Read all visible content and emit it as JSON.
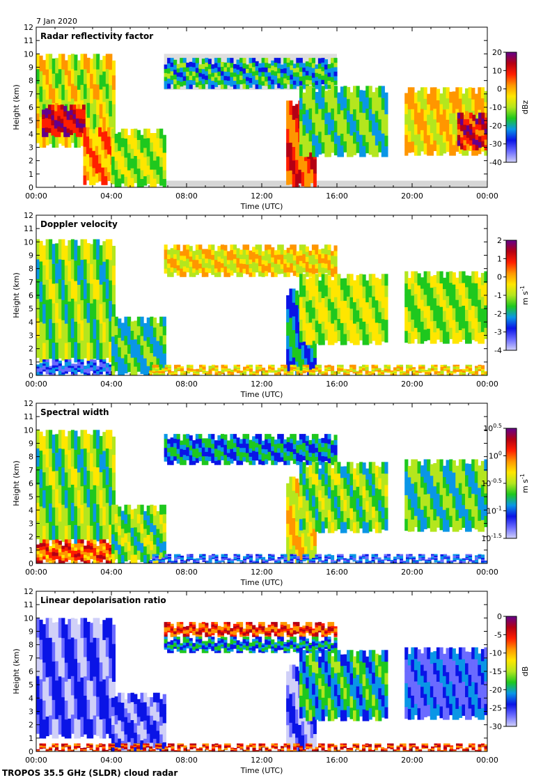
{
  "header": {
    "date_label": "7 Jan 2020"
  },
  "footer": {
    "instrument_label": "TROPOS 35.5 GHz (SLDR) cloud radar"
  },
  "colors": {
    "jet_scale": [
      "#d0d0f8",
      "#6b6bff",
      "#0a14e6",
      "#0a96e6",
      "#1ec81e",
      "#b4e61e",
      "#ffe600",
      "#ff9600",
      "#ff1e00",
      "#b40014",
      "#64008c"
    ],
    "gray_background": "#d6d6d6"
  },
  "chart_data": [
    {
      "type": "heatmap",
      "title": "Radar reflectivity factor",
      "xlabel": "Time (UTC)",
      "ylabel": "Height (km)",
      "xlim": [
        0,
        24
      ],
      "ylim": [
        0,
        12
      ],
      "x_ticks": [
        "00:00",
        "04:00",
        "08:00",
        "12:00",
        "16:00",
        "20:00",
        "00:00"
      ],
      "y_ticks": [
        "0",
        "1",
        "2",
        "3",
        "4",
        "5",
        "6",
        "7",
        "8",
        "9",
        "10",
        "11",
        "12"
      ],
      "colorbar": {
        "unit": "dBz",
        "range": [
          -40,
          20
        ],
        "ticks": [
          "-40",
          "-30",
          "-20",
          "-10",
          "0",
          "10",
          "20"
        ]
      },
      "field": "reflectivity",
      "cloud_regions": [
        {
          "t": [
            0.0,
            4.2
          ],
          "h": [
            3.0,
            10.0
          ],
          "v": 0.55
        },
        {
          "t": [
            0.3,
            2.6
          ],
          "h": [
            3.8,
            6.2
          ],
          "v": 0.88
        },
        {
          "t": [
            2.5,
            4.1
          ],
          "h": [
            0.2,
            4.5
          ],
          "v": 0.7
        },
        {
          "t": [
            4.0,
            6.9
          ],
          "h": [
            0.0,
            4.4
          ],
          "v": 0.5
        },
        {
          "t": [
            6.8,
            16.0
          ],
          "h": [
            7.4,
            9.7
          ],
          "v": 0.35
        },
        {
          "t": [
            13.3,
            14.9
          ],
          "h": [
            0.0,
            6.5
          ],
          "v": 0.78
        },
        {
          "t": [
            14.0,
            18.7
          ],
          "h": [
            2.3,
            7.6
          ],
          "v": 0.42
        },
        {
          "t": [
            19.6,
            24.0
          ],
          "h": [
            2.4,
            7.5
          ],
          "v": 0.62
        },
        {
          "t": [
            22.4,
            24.0
          ],
          "h": [
            2.8,
            5.6
          ],
          "v": 0.85
        }
      ]
    },
    {
      "type": "heatmap",
      "title": "Doppler velocity",
      "xlabel": "Time (UTC)",
      "ylabel": "Height (km)",
      "xlim": [
        0,
        24
      ],
      "ylim": [
        0,
        12
      ],
      "x_ticks": [
        "00:00",
        "04:00",
        "08:00",
        "12:00",
        "16:00",
        "20:00",
        "00:00"
      ],
      "y_ticks": [
        "0",
        "1",
        "2",
        "3",
        "4",
        "5",
        "6",
        "7",
        "8",
        "9",
        "10",
        "11",
        "12"
      ],
      "colorbar": {
        "unit": "m s-1",
        "range": [
          -4,
          2
        ],
        "ticks": [
          "-4",
          "-3",
          "-2",
          "-1",
          "0",
          "1",
          "2"
        ]
      },
      "field": "velocity",
      "cloud_regions": [
        {
          "t": [
            0.0,
            4.2
          ],
          "h": [
            1.0,
            10.2
          ],
          "v": 0.45
        },
        {
          "t": [
            0.0,
            4.2
          ],
          "h": [
            0.0,
            1.2
          ],
          "v": 0.2
        },
        {
          "t": [
            4.0,
            6.9
          ],
          "h": [
            0.0,
            4.4
          ],
          "v": 0.38
        },
        {
          "t": [
            6.8,
            16.0
          ],
          "h": [
            7.4,
            9.8
          ],
          "v": 0.6
        },
        {
          "t": [
            13.3,
            14.9
          ],
          "h": [
            0.0,
            6.5
          ],
          "v": 0.3
        },
        {
          "t": [
            14.0,
            18.7
          ],
          "h": [
            2.3,
            7.6
          ],
          "v": 0.52
        },
        {
          "t": [
            19.6,
            24.0
          ],
          "h": [
            2.4,
            7.8
          ],
          "v": 0.48
        },
        {
          "t": [
            6.0,
            24.0
          ],
          "h": [
            0.0,
            0.8
          ],
          "v": 0.62
        }
      ]
    },
    {
      "type": "heatmap",
      "title": "Spectral width",
      "xlabel": "Time (UTC)",
      "ylabel": "Height (km)",
      "xlim": [
        0,
        24
      ],
      "ylim": [
        0,
        12
      ],
      "x_ticks": [
        "00:00",
        "04:00",
        "08:00",
        "12:00",
        "16:00",
        "20:00",
        "00:00"
      ],
      "y_ticks": [
        "0",
        "1",
        "2",
        "3",
        "4",
        "5",
        "6",
        "7",
        "8",
        "9",
        "10",
        "11",
        "12"
      ],
      "colorbar": {
        "unit": "m s-1",
        "range": [
          -1.5,
          0.5
        ],
        "ticks": [
          "10^-1.5",
          "10^-1",
          "10^-0.5",
          "10^0",
          "10^0.5"
        ]
      },
      "field": "width",
      "cloud_regions": [
        {
          "t": [
            0.0,
            4.2
          ],
          "h": [
            1.5,
            10.0
          ],
          "v": 0.45
        },
        {
          "t": [
            0.0,
            4.2
          ],
          "h": [
            0.0,
            1.8
          ],
          "v": 0.75
        },
        {
          "t": [
            4.0,
            6.9
          ],
          "h": [
            0.0,
            4.4
          ],
          "v": 0.45
        },
        {
          "t": [
            6.8,
            16.0
          ],
          "h": [
            7.4,
            9.7
          ],
          "v": 0.3
        },
        {
          "t": [
            13.3,
            14.9
          ],
          "h": [
            0.0,
            6.5
          ],
          "v": 0.6
        },
        {
          "t": [
            14.0,
            18.7
          ],
          "h": [
            2.3,
            7.6
          ],
          "v": 0.45
        },
        {
          "t": [
            19.6,
            24.0
          ],
          "h": [
            2.4,
            7.8
          ],
          "v": 0.4
        },
        {
          "t": [
            6.0,
            24.0
          ],
          "h": [
            0.0,
            0.7
          ],
          "v": 0.22
        }
      ]
    },
    {
      "type": "heatmap",
      "title": "Linear depolarisation ratio",
      "xlabel": "Time (UTC)",
      "ylabel": "Height (km)",
      "xlim": [
        0,
        24
      ],
      "ylim": [
        0,
        12
      ],
      "x_ticks": [
        "00:00",
        "04:00",
        "08:00",
        "12:00",
        "16:00",
        "20:00",
        "00:00"
      ],
      "y_ticks": [
        "0",
        "1",
        "2",
        "3",
        "4",
        "5",
        "6",
        "7",
        "8",
        "9",
        "10",
        "11",
        "12"
      ],
      "colorbar": {
        "unit": "dB",
        "range": [
          -30,
          0
        ],
        "ticks": [
          "-30",
          "-25",
          "-20",
          "-15",
          "-10",
          "-5",
          "0"
        ]
      },
      "field": "ldr",
      "cloud_regions": [
        {
          "t": [
            0.0,
            4.2
          ],
          "h": [
            1.0,
            10.0
          ],
          "v": 0.12
        },
        {
          "t": [
            4.0,
            6.9
          ],
          "h": [
            0.0,
            4.4
          ],
          "v": 0.12
        },
        {
          "t": [
            6.8,
            16.0
          ],
          "h": [
            8.6,
            9.7
          ],
          "v": 0.78
        },
        {
          "t": [
            6.8,
            16.0
          ],
          "h": [
            7.4,
            8.6
          ],
          "v": 0.3
        },
        {
          "t": [
            13.3,
            14.9
          ],
          "h": [
            0.0,
            6.5
          ],
          "v": 0.1
        },
        {
          "t": [
            14.0,
            18.7
          ],
          "h": [
            2.3,
            7.6
          ],
          "v": 0.35
        },
        {
          "t": [
            19.6,
            24.0
          ],
          "h": [
            2.4,
            7.8
          ],
          "v": 0.18
        },
        {
          "t": [
            0.0,
            24.0
          ],
          "h": [
            0.0,
            0.6
          ],
          "v": 0.8
        }
      ]
    }
  ]
}
